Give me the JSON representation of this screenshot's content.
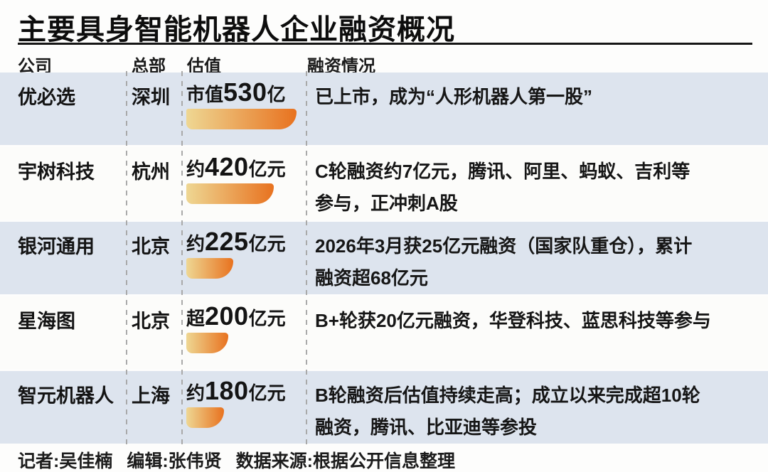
{
  "title": "主要具身智能机器人企业融资概况",
  "table": {
    "columns": [
      "公司",
      "总部",
      "估值",
      "融资情况"
    ],
    "rows": [
      {
        "company": "优必选",
        "hq": "深圳",
        "val_prefix": "市值",
        "val_number": "530",
        "val_suffix": "亿",
        "value": 530,
        "funding_lines": [
          "已上市，成为“人形机器人第一股”"
        ]
      },
      {
        "company": "宇树科技",
        "hq": "杭州",
        "val_prefix": "约",
        "val_number": "420",
        "val_suffix": "亿元",
        "value": 420,
        "funding_lines": [
          "C轮融资约7亿元，腾讯、阿里、蚂蚁、吉利等",
          "参与，正冲刺A股"
        ]
      },
      {
        "company": "银河通用",
        "hq": "北京",
        "val_prefix": "约",
        "val_number": "225",
        "val_suffix": "亿元",
        "value": 225,
        "funding_lines": [
          "2026年3月获25亿元融资（国家队重仓），累计",
          "融资超68亿元"
        ]
      },
      {
        "company": "星海图",
        "hq": "北京",
        "val_prefix": "超",
        "val_number": "200",
        "val_suffix": "亿元",
        "value": 200,
        "funding_lines": [
          "B+轮获20亿元融资，华登科技、蓝思科技等参与"
        ]
      },
      {
        "company": "智元机器人",
        "hq": "上海",
        "val_prefix": "约",
        "val_number": "180",
        "val_suffix": "亿元",
        "value": 180,
        "funding_lines": [
          "B轮融资后估值持续走高；成立以来完成超10轮",
          "融资，腾讯、比亚迪等参投"
        ]
      }
    ]
  },
  "footer": {
    "reporter": "记者:吴佳楠",
    "editor": "编辑:张伟贤",
    "source": "数据来源:根据公开信息整理"
  },
  "colors": {
    "row_alt": "#dde4ee",
    "row_plain": "#fcfcfa",
    "bar_start": "#eed793",
    "bar_end": "#e8721f",
    "divider": "#a9a9a9",
    "text": "#141414"
  },
  "chart_data": {
    "type": "bar",
    "title": "主要具身智能机器人企业融资概况",
    "categories": [
      "优必选",
      "宇树科技",
      "银河通用",
      "星海图",
      "智元机器人"
    ],
    "values": [
      530,
      420,
      225,
      200,
      180
    ],
    "value_labels": [
      "市值530亿",
      "约420亿元",
      "约225亿元",
      "超200亿元",
      "约180亿元"
    ],
    "xlabel": "估值",
    "ylabel": "公司",
    "xlim": [
      0,
      530
    ],
    "orientation": "horizontal",
    "grid": false,
    "legend": false
  }
}
